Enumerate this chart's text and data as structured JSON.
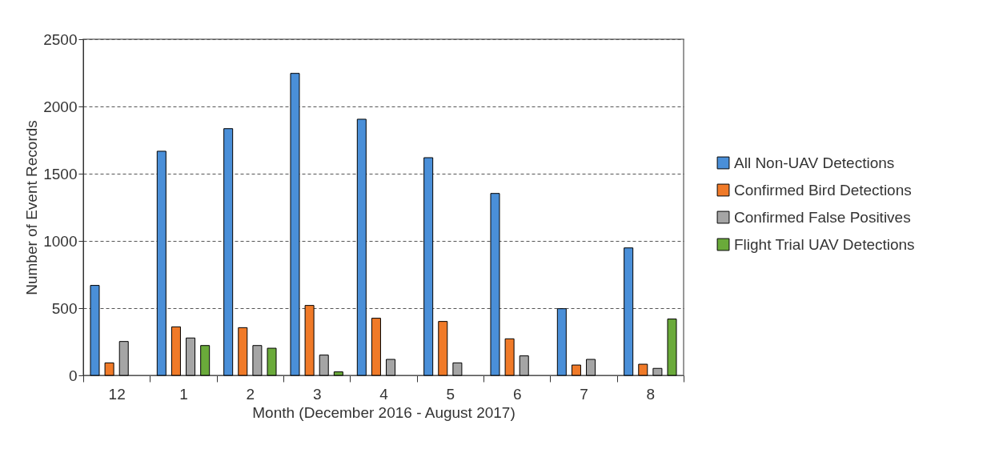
{
  "chart_data": {
    "type": "bar",
    "xlabel": "Month (December 2016 - August 2017)",
    "ylabel": "Number of Event Records",
    "categories": [
      "12",
      "1",
      "2",
      "3",
      "4",
      "5",
      "6",
      "7",
      "8"
    ],
    "series": [
      {
        "name": "All Non-UAV Detections",
        "color": "#4a8fd8",
        "values": [
          669,
          1667,
          1835,
          2246,
          1905,
          1619,
          1353,
          496,
          948
        ]
      },
      {
        "name": "Confirmed Bird Detections",
        "color": "#f07a28",
        "values": [
          93,
          361,
          355,
          520,
          425,
          401,
          272,
          77,
          83
        ]
      },
      {
        "name": "Confirmed False Positives",
        "color": "#a5a5a5",
        "values": [
          252,
          278,
          222,
          151,
          119,
          93,
          145,
          119,
          52
        ]
      },
      {
        "name": "Flight Trial UAV Detections",
        "color": "#6aaa3a",
        "values": [
          null,
          222,
          202,
          26,
          null,
          null,
          null,
          null,
          419
        ]
      }
    ],
    "ylim": [
      0,
      2500
    ],
    "yticks": [
      0,
      500,
      1000,
      1500,
      2000,
      2500
    ],
    "grid": "y",
    "legend": "right"
  }
}
